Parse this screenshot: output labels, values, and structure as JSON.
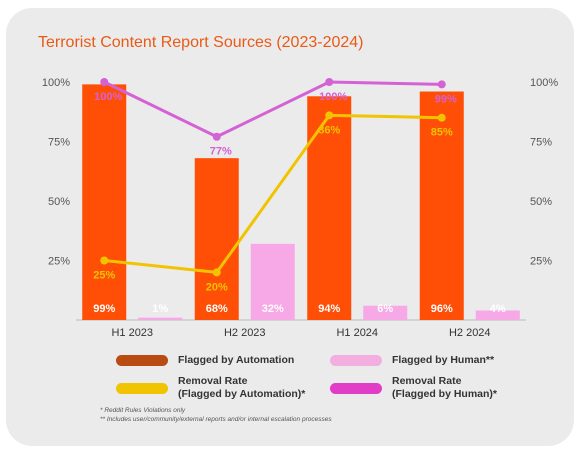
{
  "chart_data": {
    "type": "bar",
    "title": "Terrorist Content Report Sources (2023-2024)",
    "categories": [
      "H1 2023",
      "H2 2023",
      "H1 2024",
      "H2 2024"
    ],
    "ylim": [
      0,
      100
    ],
    "y_ticks": [
      "100%",
      "75%",
      "50%",
      "25%"
    ],
    "series": [
      {
        "name": "Flagged by Automation",
        "kind": "bar",
        "color": "#ff4e05",
        "values": [
          99,
          68,
          94,
          96
        ],
        "labels": [
          "99%",
          "68%",
          "94%",
          "96%"
        ]
      },
      {
        "name": "Flagged by Human**",
        "kind": "bar",
        "color": "#f7a8e6",
        "values": [
          1,
          32,
          6,
          4
        ],
        "labels": [
          "1%",
          "32%",
          "6%",
          "4%"
        ]
      },
      {
        "name": "Removal Rate\n(Flagged by Automation)*",
        "kind": "line",
        "color": "#f0c400",
        "values": [
          25,
          20,
          86,
          85
        ],
        "labels": [
          "25%",
          "20%",
          "86%",
          "85%"
        ]
      },
      {
        "name": "Removal Rate\n(Flagged by Human)*",
        "kind": "line",
        "color": "#d562d5",
        "values": [
          100,
          77,
          100,
          99
        ],
        "labels": [
          "100%",
          "77%",
          "100%",
          "99%"
        ]
      }
    ],
    "legend_position": "bottom",
    "footnotes": [
      "* Reddit Rules Violations only",
      "** Includes user/community/external reports and/or internal escalation processes"
    ]
  }
}
